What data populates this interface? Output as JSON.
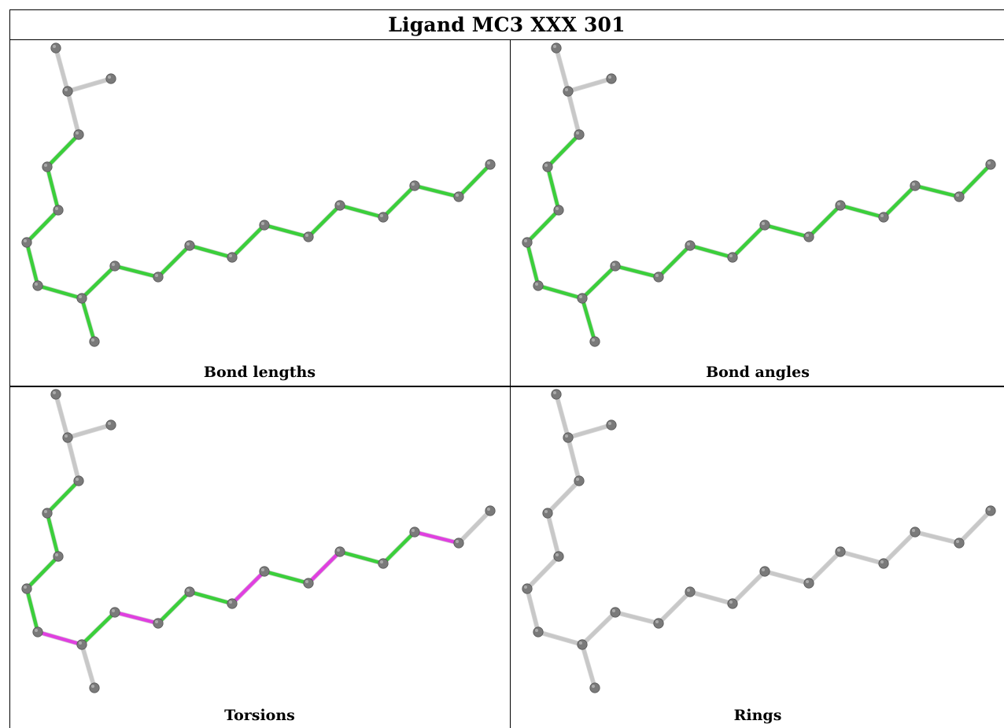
{
  "title": "Ligand MC3 XXX 301",
  "panels": [
    {
      "key": "bond_lengths",
      "label": "Bond lengths"
    },
    {
      "key": "bond_angles",
      "label": "Bond angles"
    },
    {
      "key": "torsions",
      "label": "Torsions"
    },
    {
      "key": "rings",
      "label": "Rings"
    }
  ],
  "colors": {
    "atom": "#7a7a7a",
    "ok_bond": "#3bcf3b",
    "flagged_bond": "#e040e0",
    "unassessed_bond": "#c8c8c8"
  }
}
